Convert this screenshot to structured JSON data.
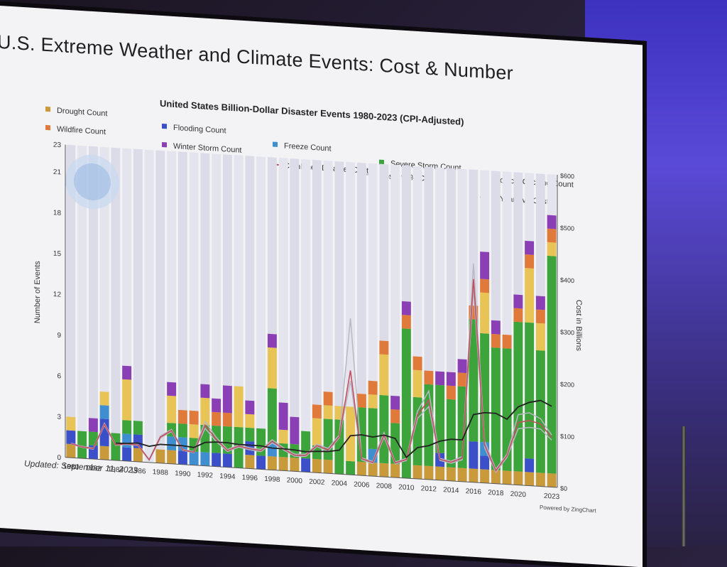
{
  "slide": {
    "title": "U.S. Extreme Weather and Climate Events: Cost & Number",
    "updated": "Updated: September 11, 2023",
    "powered": "Powered by ZingChart"
  },
  "colors": {
    "drought": "#c99a3a",
    "flooding": "#3a4fc8",
    "freeze": "#3f8fd0",
    "severe": "#3ca43a",
    "tropical": "#e8c355",
    "wildfire": "#e07a3a",
    "winter": "#8a3fb5",
    "combined": "#c25060",
    "ci": "#b8b8c4",
    "avg": "#222222"
  },
  "chart_data": {
    "type": "bar",
    "stacked": true,
    "title": "United States Billion-Dollar Disaster Events 1980-2023 (CPI-Adjusted)",
    "ylabel": "Number of Events",
    "y2label": "Cost in Billions",
    "ylim": [
      0,
      23
    ],
    "y2lim": [
      0,
      600
    ],
    "yticks": [
      "0",
      "3",
      "6",
      "9",
      "12",
      "15",
      "18",
      "21",
      "23"
    ],
    "y2ticks": [
      "$0",
      "$100",
      "$200",
      "$300",
      "$400",
      "$500",
      "$600"
    ],
    "xticks": [
      "1980",
      "1982",
      "1984",
      "1986",
      "1988",
      "1990",
      "1992",
      "1994",
      "1996",
      "1998",
      "2000",
      "2002",
      "2004",
      "2006",
      "2008",
      "2010",
      "2012",
      "2014",
      "2016",
      "2018",
      "2020",
      "2023"
    ],
    "categories": [
      "1980",
      "1981",
      "1982",
      "1983",
      "1984",
      "1985",
      "1986",
      "1987",
      "1988",
      "1989",
      "1990",
      "1991",
      "1992",
      "1993",
      "1994",
      "1995",
      "1996",
      "1997",
      "1998",
      "1999",
      "2000",
      "2001",
      "2002",
      "2003",
      "2004",
      "2005",
      "2006",
      "2007",
      "2008",
      "2009",
      "2010",
      "2011",
      "2012",
      "2013",
      "2014",
      "2015",
      "2016",
      "2017",
      "2018",
      "2019",
      "2020",
      "2021",
      "2022",
      "2023"
    ],
    "legend": [
      {
        "key": "drought",
        "label": "Drought Count"
      },
      {
        "key": "wildfire",
        "label": "Wildfire Count"
      },
      {
        "key": "flooding",
        "label": "Flooding Count"
      },
      {
        "key": "winter",
        "label": "Winter Storm Count"
      },
      {
        "key": "freeze",
        "label": "Freeze Count"
      },
      {
        "key": "combined",
        "label": "Combined Disaster Cost"
      },
      {
        "key": "ci",
        "label": "Costs 95% CI"
      },
      {
        "key": "severe",
        "label": "Severe Storm Count"
      },
      {
        "key": "tropical",
        "label": "Tropical Cyclone Count"
      },
      {
        "key": "avg",
        "label": "5-Year Avg Costs"
      }
    ],
    "series": [
      {
        "key": "drought",
        "values": [
          1,
          0,
          0,
          1,
          0,
          0,
          1,
          0,
          1,
          1,
          0,
          0,
          0,
          0,
          0,
          0,
          1,
          0,
          1,
          1,
          1,
          0,
          1,
          1,
          0,
          0,
          1,
          1,
          1,
          1,
          0,
          1,
          1,
          1,
          1,
          1,
          1,
          1,
          1,
          1,
          1,
          1,
          1,
          1
        ]
      },
      {
        "key": "flooding",
        "values": [
          1,
          0,
          1,
          2,
          0,
          1,
          1,
          0,
          0,
          0,
          1,
          0,
          0,
          1,
          1,
          0,
          1,
          1,
          0,
          0,
          0,
          1,
          0,
          0,
          0,
          0,
          0,
          0,
          0,
          0,
          0,
          0,
          0,
          1,
          0,
          0,
          2,
          1,
          0,
          0,
          0,
          1,
          0,
          0
        ]
      },
      {
        "key": "freeze",
        "values": [
          0,
          0,
          0,
          1,
          0,
          1,
          0,
          0,
          0,
          1,
          1,
          1,
          1,
          0,
          0,
          0,
          0,
          0,
          1,
          0,
          0,
          0,
          0,
          0,
          0,
          0,
          0,
          1,
          0,
          0,
          0,
          0,
          0,
          0,
          0,
          0,
          0,
          1,
          0,
          0,
          0,
          0,
          0,
          0
        ]
      },
      {
        "key": "severe",
        "values": [
          0,
          2,
          1,
          0,
          2,
          1,
          1,
          0,
          0,
          1,
          1,
          1,
          2,
          2,
          2,
          3,
          1,
          2,
          4,
          1,
          1,
          2,
          1,
          3,
          4,
          1,
          4,
          3,
          5,
          3,
          11,
          5,
          6,
          5,
          5,
          6,
          9,
          8,
          9,
          9,
          11,
          10,
          9,
          16
        ]
      },
      {
        "key": "tropical",
        "values": [
          1,
          0,
          0,
          1,
          0,
          3,
          0,
          0,
          0,
          2,
          0,
          1,
          2,
          0,
          0,
          3,
          1,
          0,
          3,
          1,
          0,
          0,
          2,
          1,
          1,
          4,
          0,
          1,
          3,
          0,
          0,
          2,
          0,
          0,
          0,
          0,
          0,
          3,
          0,
          0,
          0,
          4,
          2,
          1
        ]
      },
      {
        "key": "wildfire",
        "values": [
          0,
          0,
          0,
          0,
          0,
          0,
          0,
          0,
          0,
          0,
          1,
          1,
          0,
          1,
          1,
          0,
          0,
          0,
          0,
          0,
          0,
          0,
          1,
          1,
          0,
          0,
          1,
          1,
          1,
          1,
          1,
          1,
          1,
          0,
          1,
          1,
          1,
          1,
          1,
          1,
          1,
          1,
          1,
          1
        ]
      },
      {
        "key": "winter",
        "values": [
          0,
          0,
          1,
          0,
          0,
          1,
          0,
          0,
          0,
          1,
          0,
          0,
          1,
          1,
          2,
          0,
          1,
          0,
          1,
          2,
          2,
          0,
          0,
          0,
          0,
          0,
          0,
          0,
          0,
          1,
          1,
          0,
          0,
          1,
          1,
          1,
          0,
          2,
          1,
          0,
          1,
          1,
          1,
          1
        ]
      }
    ],
    "combined_cost": [
      27,
      22,
      20,
      68,
      30,
      33,
      32,
      5,
      50,
      64,
      28,
      25,
      78,
      52,
      32,
      42,
      38,
      36,
      55,
      42,
      31,
      32,
      52,
      45,
      72,
      200,
      32,
      26,
      80,
      28,
      36,
      123,
      152,
      40,
      36,
      45,
      390,
      73,
      25,
      55,
      120,
      125,
      120,
      95
    ],
    "ci_high": [
      28,
      23,
      21,
      70,
      31,
      34,
      33,
      6,
      52,
      66,
      29,
      26,
      85,
      56,
      34,
      44,
      40,
      38,
      58,
      44,
      33,
      34,
      55,
      48,
      75,
      300,
      34,
      28,
      85,
      30,
      38,
      130,
      170,
      42,
      38,
      48,
      420,
      80,
      28,
      58,
      135,
      140,
      130,
      100
    ],
    "ci_low": [
      26,
      21,
      19,
      66,
      29,
      32,
      31,
      4,
      48,
      62,
      27,
      24,
      72,
      48,
      30,
      40,
      36,
      34,
      52,
      40,
      29,
      30,
      50,
      42,
      70,
      180,
      30,
      24,
      76,
      26,
      34,
      116,
      140,
      38,
      34,
      42,
      370,
      68,
      22,
      52,
      108,
      112,
      110,
      90
    ],
    "avg_cost": [
      null,
      null,
      null,
      null,
      33,
      34,
      36,
      31,
      36,
      36,
      36,
      34,
      45,
      47,
      47,
      45,
      45,
      45,
      42,
      42,
      41,
      39,
      41,
      42,
      46,
      75,
      78,
      75,
      80,
      75,
      40,
      60,
      65,
      75,
      80,
      80,
      130,
      135,
      135,
      125,
      150,
      160,
      165,
      155
    ]
  }
}
